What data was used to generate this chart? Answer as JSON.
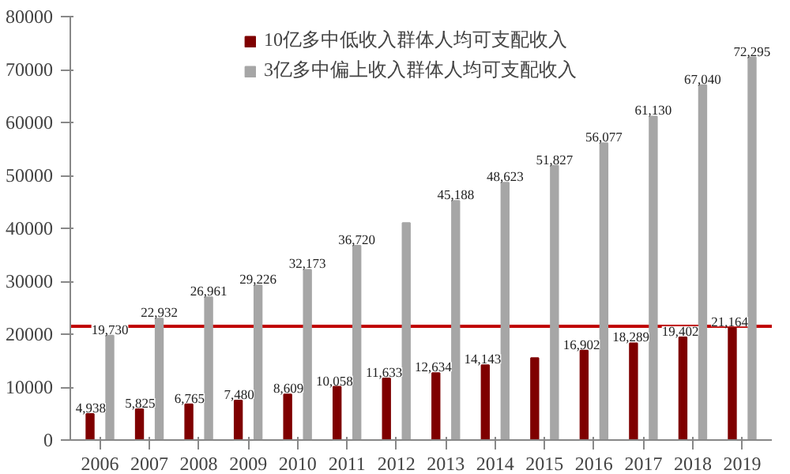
{
  "chart_data": {
    "type": "bar",
    "categories": [
      "2006",
      "2007",
      "2008",
      "2009",
      "2010",
      "2011",
      "2012",
      "2013",
      "2014",
      "2015",
      "2016",
      "2017",
      "2018",
      "2019"
    ],
    "series": [
      {
        "name": "10亿多中低收入群体人均可支配收入",
        "color": "#7f0000",
        "values": [
          4938,
          5825,
          6765,
          7480,
          8609,
          10058,
          11633,
          12634,
          14143,
          15500,
          16902,
          18289,
          19402,
          21164
        ],
        "value_labels": [
          "4,938",
          "5,825",
          "6,765",
          "7,480",
          "8,609",
          "10,058",
          "11,633",
          "12,634",
          "14,143",
          null,
          "16,902",
          "18,289",
          "19,402",
          "21,164"
        ]
      },
      {
        "name": "3亿多中偏上收入群体人均可支配收入",
        "color": "#a6a6a6",
        "values": [
          19730,
          22932,
          26961,
          29226,
          32173,
          36720,
          41000,
          45188,
          48623,
          51827,
          56077,
          61130,
          67040,
          72295
        ],
        "value_labels": [
          "19,730",
          "22,932",
          "26,961",
          "29,226",
          "32,173",
          "36,720",
          null,
          "45,188",
          "48,623",
          "51,827",
          "56,077",
          "61,130",
          "67,040",
          "72,295"
        ]
      }
    ],
    "ylim": [
      0,
      80000
    ],
    "yticks": [
      0,
      10000,
      20000,
      30000,
      40000,
      50000,
      60000,
      70000,
      80000
    ],
    "ref_lines": [
      {
        "axis": "y",
        "value": 21500,
        "color": "#c00000"
      }
    ],
    "legend": "top",
    "grid": false
  }
}
